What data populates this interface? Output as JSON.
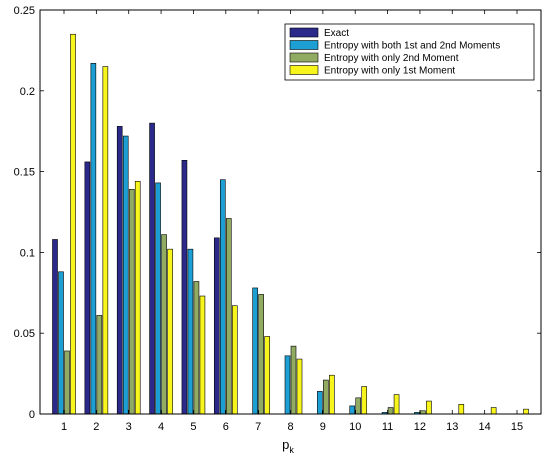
{
  "chart_data": {
    "type": "bar",
    "title": "",
    "xlabel": "p",
    "xlabel_subscript": "k",
    "ylabel": "",
    "ylim": [
      0,
      0.25
    ],
    "yticks": [
      "0",
      "0.05",
      "0.1",
      "0.15",
      "0.2",
      "0.25"
    ],
    "grid": false,
    "legend_position": "top-right",
    "categories": [
      "1",
      "2",
      "3",
      "4",
      "5",
      "6",
      "7",
      "8",
      "9",
      "10",
      "11",
      "12",
      "13",
      "14",
      "15"
    ],
    "series": [
      {
        "name": "Exact",
        "color": "#2b2a8b",
        "values": [
          0.108,
          0.156,
          0.178,
          0.18,
          0.157,
          0.109,
          0,
          0,
          0,
          0,
          0,
          0,
          0,
          0,
          0
        ]
      },
      {
        "name": "Entropy with both 1st and 2nd Moments",
        "color": "#1e9fd3",
        "values": [
          0.088,
          0.217,
          0.172,
          0.143,
          0.102,
          0.145,
          0.078,
          0.036,
          0.014,
          0.005,
          0.001,
          0.001,
          0.0,
          0.0,
          0.0
        ]
      },
      {
        "name": "Entropy with only 2nd Moment",
        "color": "#92ab63",
        "values": [
          0.039,
          0.061,
          0.139,
          0.111,
          0.082,
          0.121,
          0.074,
          0.042,
          0.021,
          0.01,
          0.004,
          0.002,
          0.0,
          0.0,
          0.0
        ]
      },
      {
        "name": "Entropy with only 1st Moment",
        "color": "#f7f51c",
        "values": [
          0.235,
          0.215,
          0.144,
          0.102,
          0.073,
          0.067,
          0.048,
          0.034,
          0.024,
          0.017,
          0.012,
          0.008,
          0.006,
          0.004,
          0.003
        ]
      }
    ]
  }
}
